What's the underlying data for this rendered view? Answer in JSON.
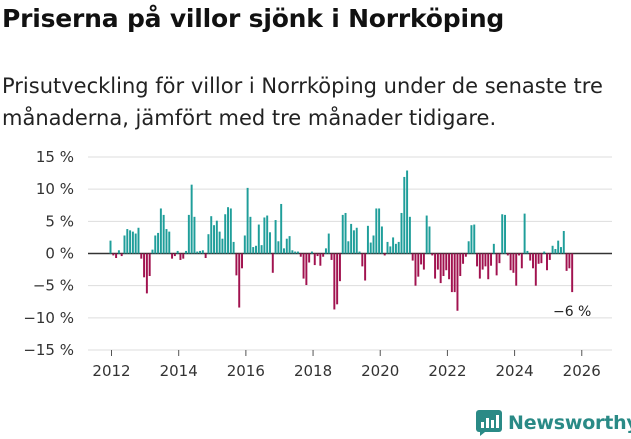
{
  "title": "Priserna på villor sjönk i Norrköping",
  "subtitle": "Prisutveckling för villor i Norrköping under de senaste tre månaderna, jämfört med tre månader tidigare.",
  "brand": {
    "name": "Newsworthy",
    "icon": "newsworthy-logo-icon"
  },
  "colors": {
    "positive": "#1f9e9a",
    "negative": "#a1124f",
    "grid": "#dddddd",
    "zero": "#333333"
  },
  "chart_data": {
    "type": "bar",
    "title": "Priserna på villor sjönk i Norrköping",
    "xlabel": "",
    "ylabel": "",
    "ylim": [
      -15,
      15
    ],
    "yticks": [
      -15,
      -10,
      -5,
      0,
      5,
      10,
      15
    ],
    "ytick_labels": [
      "−15 %",
      "−10 %",
      "−5 %",
      "0 %",
      "5 %",
      "10 %",
      "15 %"
    ],
    "xticks": [
      2012,
      2014,
      2016,
      2018,
      2020,
      2022,
      2024,
      2026
    ],
    "xtick_labels": [
      "2012",
      "2014",
      "2016",
      "2018",
      "2020",
      "2022",
      "2024",
      "2026"
    ],
    "x_start": 2011.97,
    "x_step": 0.0833,
    "values": [
      2.0,
      -0.3,
      -0.7,
      0.5,
      -0.4,
      2.8,
      3.8,
      3.6,
      3.4,
      3.1,
      4.0,
      -0.8,
      -3.7,
      -6.2,
      -3.5,
      0.6,
      2.8,
      3.2,
      7.0,
      6.0,
      3.8,
      3.4,
      -0.8,
      -0.4,
      0.4,
      -1.0,
      -0.8,
      0.4,
      6.0,
      10.7,
      5.7,
      0.3,
      0.4,
      0.5,
      -0.7,
      3.0,
      5.8,
      4.4,
      5.1,
      3.4,
      2.3,
      6.1,
      7.2,
      7.0,
      1.8,
      -3.4,
      -8.4,
      -2.3,
      2.8,
      10.2,
      5.7,
      1.0,
      1.2,
      4.5,
      1.3,
      5.6,
      5.9,
      3.3,
      -3.0,
      5.2,
      1.9,
      7.7,
      0.8,
      2.3,
      2.7,
      0.5,
      0.3,
      0.3,
      -0.5,
      -3.9,
      -4.9,
      -1.4,
      0.3,
      -1.8,
      -0.4,
      -1.9,
      -0.5,
      0.8,
      3.1,
      -1.0,
      -8.7,
      -7.9,
      -4.3,
      6.0,
      6.3,
      1.9,
      4.6,
      3.6,
      4.0,
      0.3,
      -2.0,
      -4.2,
      4.3,
      1.7,
      2.8,
      7.0,
      7.0,
      4.2,
      -0.3,
      1.8,
      1.1,
      2.5,
      1.5,
      1.8,
      6.3,
      11.9,
      12.9,
      5.7,
      -1.1,
      -5.0,
      -3.6,
      -1.7,
      -2.5,
      5.9,
      4.2,
      -0.3,
      -3.9,
      -2.5,
      -4.6,
      -3.5,
      -2.6,
      -4.0,
      -6.0,
      -6.0,
      -8.9,
      -3.5,
      -1.6,
      -0.5,
      1.9,
      4.4,
      4.5,
      -2.0,
      -3.9,
      -2.5,
      -2.0,
      -4.0,
      -1.9,
      1.5,
      -3.4,
      -1.5,
      6.1,
      6.0,
      -0.3,
      -2.6,
      -3.0,
      -5.0,
      -0.3,
      -2.3,
      6.2,
      0.4,
      -1.1,
      -2.3,
      -5.0,
      -1.6,
      -1.5,
      0.3,
      -2.6,
      -1.0,
      1.2,
      0.7,
      2.0,
      1.0,
      3.5,
      -2.7,
      -2.3,
      -6.0
    ],
    "annotation": {
      "label": "−6 %"
    }
  }
}
